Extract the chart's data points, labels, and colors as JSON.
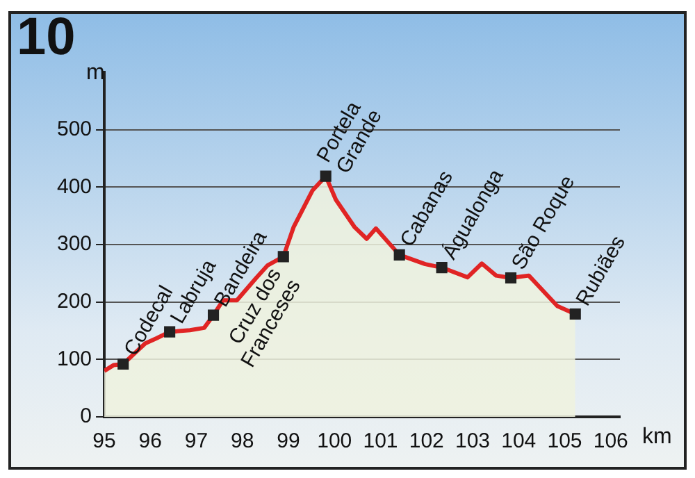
{
  "chart_data": {
    "type": "area",
    "title": "10",
    "xlabel": "km",
    "ylabel": "m",
    "xlim": [
      95,
      106.2
    ],
    "xticks": [
      95,
      96,
      97,
      98,
      99,
      100,
      101,
      102,
      103,
      104,
      105,
      106
    ],
    "ylim": [
      0,
      600
    ],
    "yticks": [
      0,
      100,
      200,
      300,
      400,
      500
    ],
    "grid": "y",
    "legend": false,
    "series": [
      {
        "color": "#e02424",
        "x": [
          95,
          95.2,
          95.41,
          95.89,
          96.14,
          96.42,
          96.86,
          97.17,
          97.37,
          97.58,
          97.88,
          98.29,
          98.55,
          98.89,
          99.11,
          99.52,
          99.81,
          100.03,
          100.44,
          100.7,
          100.9,
          101.41,
          101.97,
          102.33,
          102.89,
          103.2,
          103.51,
          103.83,
          104.22,
          104.84,
          105.23
        ],
        "values": [
          80,
          90,
          92,
          128,
          137,
          148,
          151,
          155,
          177,
          203,
          203,
          241,
          264,
          279,
          330,
          394,
          419,
          378,
          330,
          310,
          328,
          282,
          266,
          260,
          243,
          267,
          246,
          242,
          246,
          193,
          179
        ]
      },
      {
        "type": "scatter",
        "color": "#222222",
        "marker": "square",
        "x": [
          95.41,
          96.42,
          97.37,
          98.89,
          99.81,
          101.41,
          102.33,
          103.83,
          105.23
        ],
        "values": [
          92,
          148,
          177,
          279,
          419,
          282,
          260,
          242,
          179
        ]
      }
    ],
    "annotations": [
      {
        "text": "Codecal",
        "x": 95.41,
        "y": 92
      },
      {
        "text": "Labruja",
        "x": 96.42,
        "y": 148
      },
      {
        "text": "Bandeira",
        "x": 97.37,
        "y": 177
      },
      {
        "text": "Cruz dos\nFranceses",
        "x": 98.89,
        "y": 279
      },
      {
        "text": "Portela\nGrande",
        "x": 99.81,
        "y": 419
      },
      {
        "text": "Cabanas",
        "x": 101.41,
        "y": 282
      },
      {
        "text": "Águalonga",
        "x": 102.33,
        "y": 260
      },
      {
        "text": "São Roque",
        "x": 103.83,
        "y": 242
      },
      {
        "text": "Rubiães",
        "x": 105.23,
        "y": 179
      }
    ]
  }
}
